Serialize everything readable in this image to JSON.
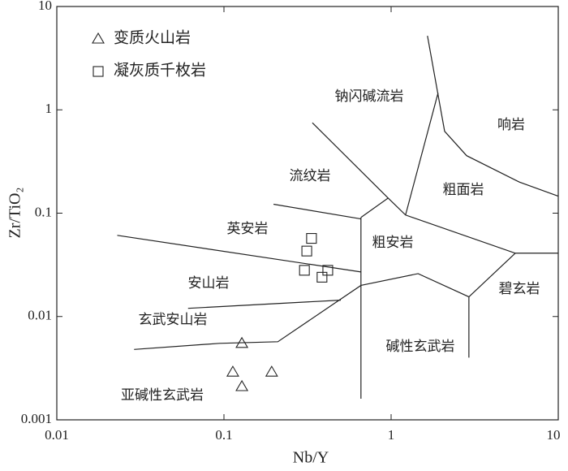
{
  "chart_data": {
    "type": "scatter",
    "x_label": "Nb/Y",
    "y_label": "Zr/TiO₂",
    "xscale": "log",
    "yscale": "log",
    "xlim": [
      0.01,
      10
    ],
    "ylim": [
      0.001,
      10
    ],
    "xticks": [
      0.01,
      0.1,
      1,
      10
    ],
    "yticks": [
      0.001,
      0.01,
      0.1,
      1,
      10
    ],
    "legend": "upper left",
    "series": [
      {
        "name": "变质火山岩",
        "marker": "triangle",
        "color": "#222222",
        "x": [
          0.128,
          0.113,
          0.128,
          0.193
        ],
        "y": [
          0.0055,
          0.0029,
          0.0021,
          0.0029
        ]
      },
      {
        "name": "凝灰质千枚岩",
        "marker": "square",
        "color": "#222222",
        "x": [
          0.334,
          0.313,
          0.303,
          0.418,
          0.386
        ],
        "y": [
          0.057,
          0.043,
          0.028,
          0.028,
          0.024
        ]
      }
    ],
    "boundaries": [
      {
        "x": [
          0.029,
          0.094,
          0.21,
          0.66,
          1.45,
          2.92,
          2.92
        ],
        "y": [
          0.0048,
          0.0055,
          0.0057,
          0.02,
          0.026,
          0.0155,
          0.004
        ]
      },
      {
        "x": [
          0.66,
          0.66
        ],
        "y": [
          0.091,
          0.0016
        ]
      },
      {
        "x": [
          0.66,
          0.96,
          1.22,
          5.53,
          10
        ],
        "y": [
          0.091,
          0.14,
          0.096,
          0.041,
          0.041
        ]
      },
      {
        "x": [
          2.92,
          5.53
        ],
        "y": [
          0.0155,
          0.041
        ]
      },
      {
        "x": [
          0.061,
          0.5
        ],
        "y": [
          0.012,
          0.0144
        ]
      },
      {
        "x": [
          0.023,
          0.66
        ],
        "y": [
          0.061,
          0.027
        ]
      },
      {
        "x": [
          0.198,
          0.66
        ],
        "y": [
          0.122,
          0.088
        ]
      },
      {
        "x": [
          0.338,
          0.96
        ],
        "y": [
          0.75,
          0.14
        ]
      },
      {
        "x": [
          1.22,
          1.91
        ],
        "y": [
          0.096,
          1.46
        ]
      },
      {
        "x": [
          1.65,
          2.09,
          2.83,
          5.85,
          10
        ],
        "y": [
          5.2,
          0.62,
          0.36,
          0.2,
          0.146
        ]
      }
    ],
    "annotations": [
      "钠闪碱流岩",
      "响岩",
      "流纹岩",
      "粗面岩",
      "英安岩",
      "粗安岩",
      "安山岩",
      "碧玄岩",
      "玄武安山岩",
      "碱性玄武岩",
      "亚碱性玄武岩"
    ]
  }
}
